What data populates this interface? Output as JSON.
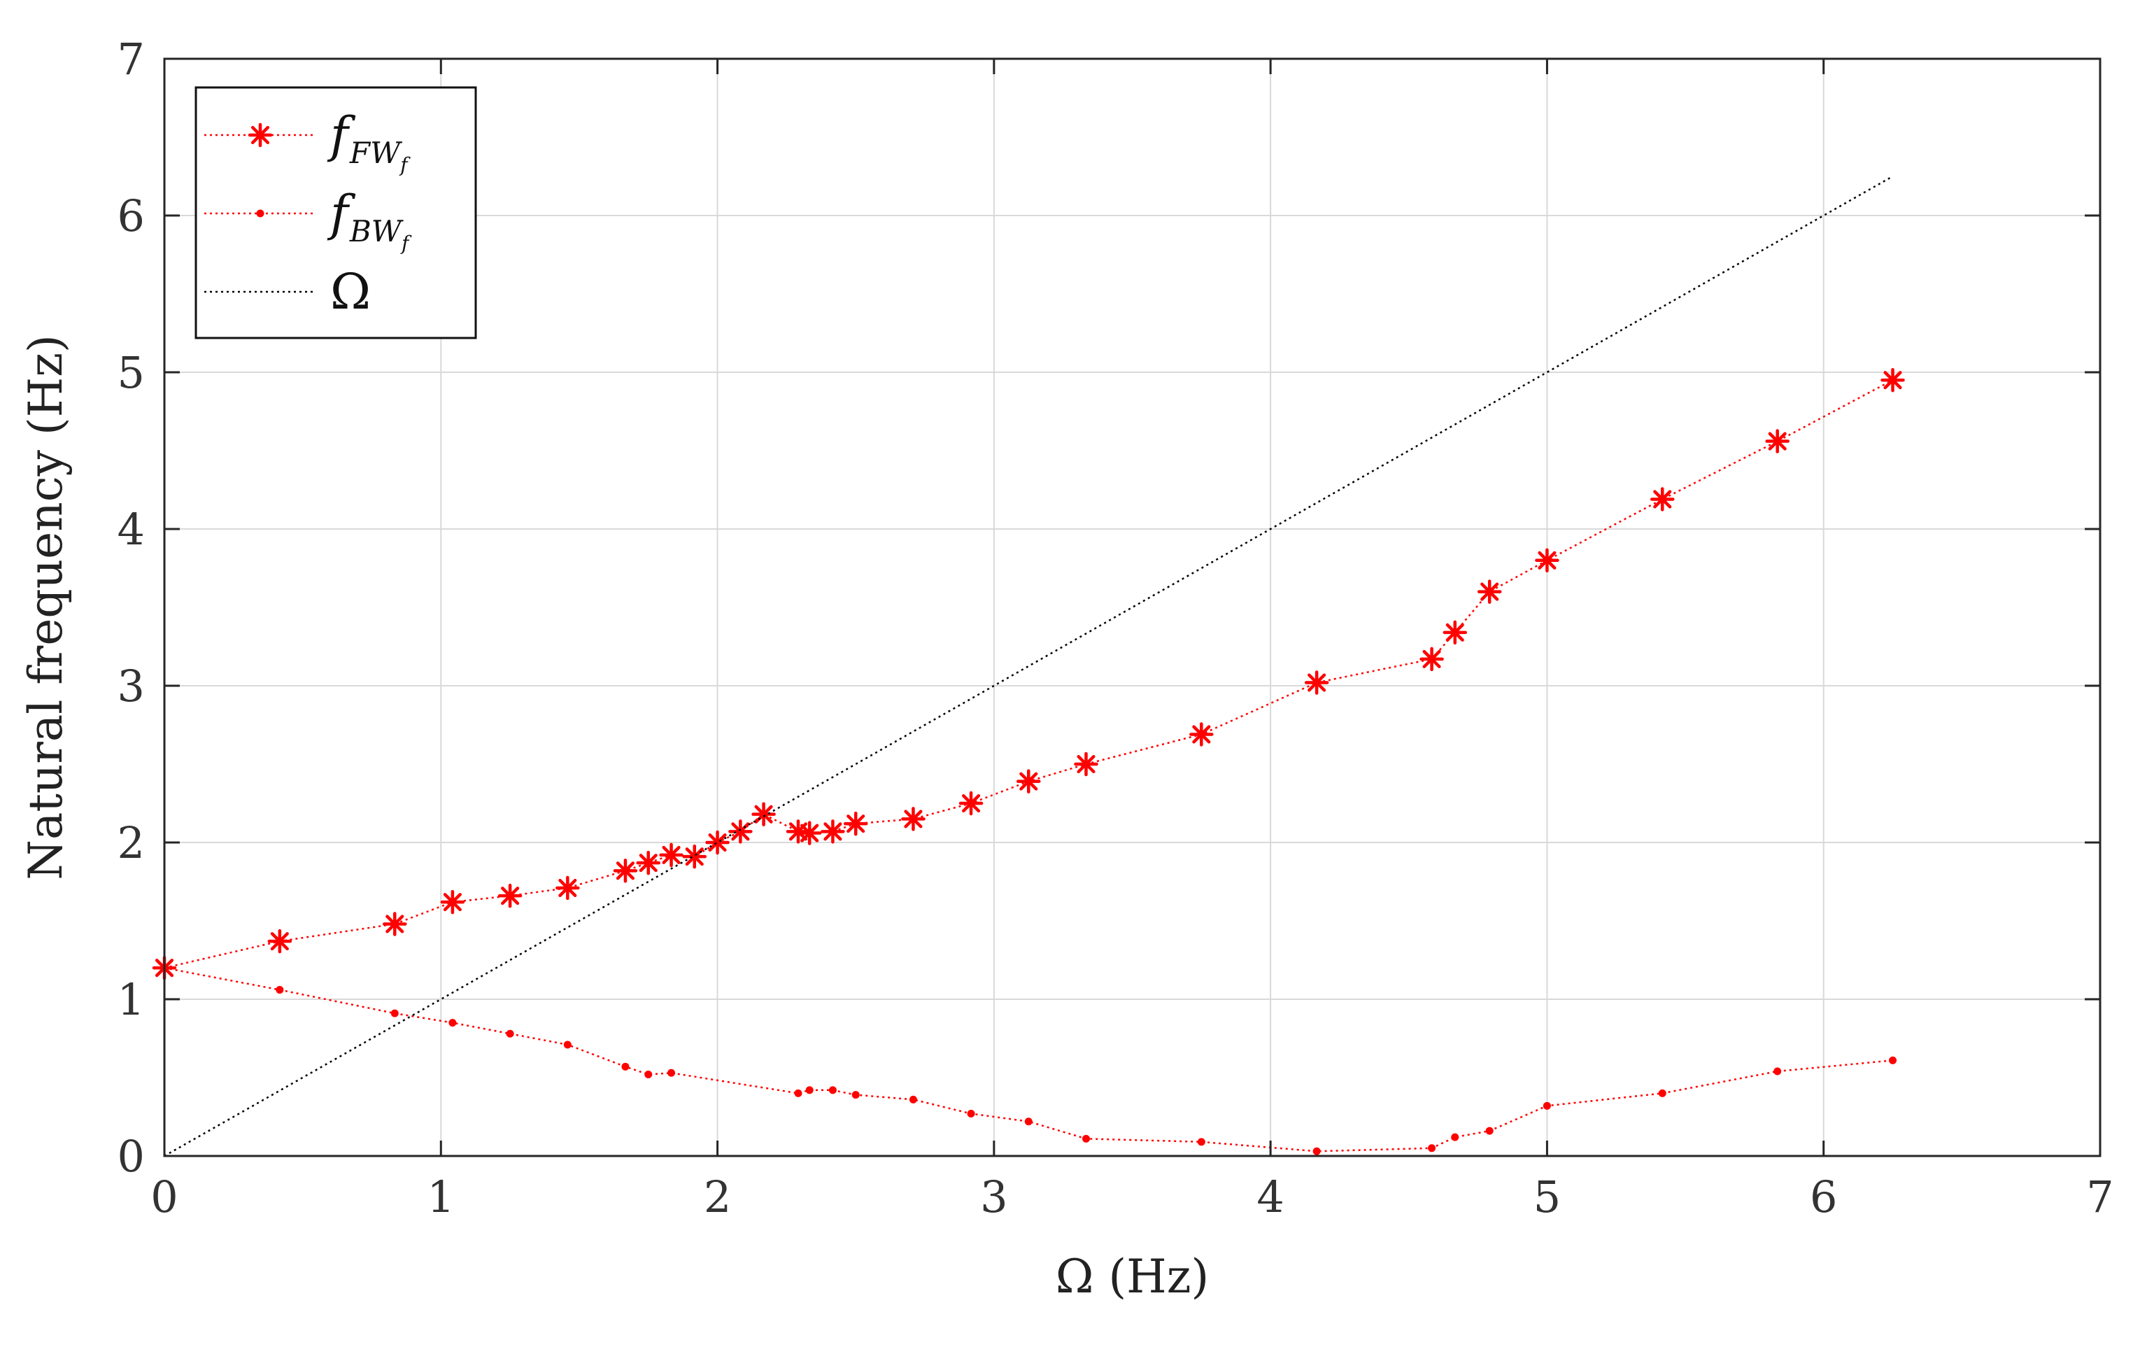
{
  "chart_data": {
    "type": "line",
    "title": "",
    "xlabel": "Ω (Hz)",
    "ylabel": "Natural frequency (Hz)",
    "xlim": [
      0,
      7
    ],
    "ylim": [
      0,
      7
    ],
    "xticks": [
      0,
      1,
      2,
      3,
      4,
      5,
      6,
      7
    ],
    "yticks": [
      0,
      1,
      2,
      3,
      4,
      5,
      6,
      7
    ],
    "grid": true,
    "legend_position": "top-left",
    "series": [
      {
        "name": "fFWf",
        "legend_main": "f",
        "legend_sub": "FW",
        "legend_subsub": "f",
        "color": "#ff0000",
        "line_style": "dotted",
        "marker": "asterisk",
        "x": [
          0,
          0.417,
          0.833,
          1.042,
          1.25,
          1.458,
          1.667,
          1.75,
          1.833,
          1.917,
          2.0,
          2.083,
          2.167,
          2.292,
          2.333,
          2.417,
          2.5,
          2.708,
          2.917,
          3.125,
          3.333,
          3.75,
          4.167,
          4.583,
          4.667,
          4.792,
          5.0,
          5.417,
          5.833,
          6.25
        ],
        "y": [
          1.2,
          1.37,
          1.48,
          1.62,
          1.66,
          1.71,
          1.82,
          1.87,
          1.92,
          1.91,
          2.0,
          2.07,
          2.18,
          2.07,
          2.06,
          2.07,
          2.12,
          2.15,
          2.25,
          2.39,
          2.5,
          2.69,
          3.02,
          3.17,
          3.34,
          3.6,
          3.8,
          4.19,
          4.56,
          4.95
        ]
      },
      {
        "name": "fBWf",
        "legend_main": "f",
        "legend_sub": "BW",
        "legend_subsub": "f",
        "color": "#ff0000",
        "line_style": "dotted",
        "marker": "dot",
        "x": [
          0,
          0.417,
          0.833,
          1.042,
          1.25,
          1.458,
          1.667,
          1.75,
          1.833,
          2.292,
          2.333,
          2.417,
          2.5,
          2.708,
          2.917,
          3.125,
          3.333,
          3.75,
          4.167,
          4.583,
          4.667,
          4.792,
          5.0,
          5.417,
          5.833,
          6.25
        ],
        "y": [
          1.2,
          1.06,
          0.91,
          0.85,
          0.78,
          0.71,
          0.57,
          0.52,
          0.53,
          0.4,
          0.42,
          0.42,
          0.39,
          0.36,
          0.27,
          0.22,
          0.11,
          0.09,
          0.03,
          0.05,
          0.12,
          0.16,
          0.32,
          0.4,
          0.54,
          0.61
        ]
      },
      {
        "name": "Ω",
        "legend_main": "Ω",
        "color": "#000000",
        "line_style": "dotted",
        "marker": "none",
        "x": [
          0,
          6.25
        ],
        "y": [
          0,
          6.25
        ]
      }
    ]
  }
}
